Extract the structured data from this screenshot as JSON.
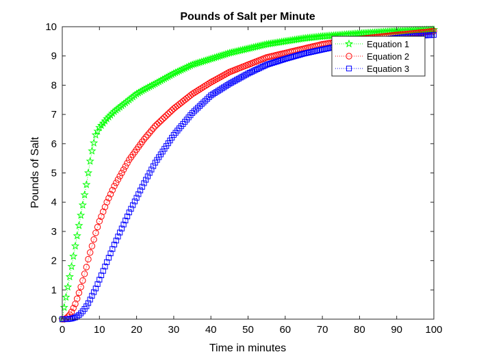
{
  "chart_data": {
    "type": "line",
    "title": "Pounds of Salt per Minute",
    "xlabel": "Time in minutes",
    "ylabel": "Pounds of Salt",
    "xlim": [
      0,
      100
    ],
    "ylim": [
      0,
      10
    ],
    "xticks": [
      0,
      10,
      20,
      30,
      40,
      50,
      60,
      70,
      80,
      90,
      100
    ],
    "yticks": [
      0,
      1,
      2,
      3,
      4,
      5,
      6,
      7,
      8,
      9,
      10
    ],
    "grid": false,
    "legend_position": "top-right",
    "x": [
      0,
      0.5,
      1,
      1.5,
      2,
      2.5,
      3,
      3.5,
      4,
      4.5,
      5,
      5.5,
      6,
      6.5,
      7,
      7.5,
      8,
      9,
      10,
      12,
      14,
      16,
      18,
      20,
      22,
      25,
      30,
      35,
      40,
      45,
      50,
      55,
      60,
      65,
      70,
      75,
      80,
      85,
      90,
      95,
      100
    ],
    "series": [
      {
        "name": "Equation 1",
        "color": "#00ff00",
        "marker": "star",
        "values": [
          0,
          0.4,
          0.75,
          1.1,
          1.45,
          1.8,
          2.15,
          2.5,
          2.85,
          3.2,
          3.55,
          3.9,
          4.25,
          4.6,
          5.0,
          5.4,
          5.75,
          6.3,
          6.55,
          6.85,
          7.1,
          7.3,
          7.5,
          7.7,
          7.85,
          8.05,
          8.4,
          8.7,
          8.9,
          9.1,
          9.25,
          9.4,
          9.5,
          9.6,
          9.67,
          9.72,
          9.77,
          9.81,
          9.85,
          9.88,
          9.9
        ]
      },
      {
        "name": "Equation 2",
        "color": "#ff0000",
        "marker": "circle",
        "values": [
          0,
          0.0,
          0.03,
          0.08,
          0.15,
          0.25,
          0.38,
          0.52,
          0.7,
          0.9,
          1.1,
          1.32,
          1.55,
          1.78,
          2.05,
          2.28,
          2.5,
          2.95,
          3.35,
          4.0,
          4.55,
          5.0,
          5.45,
          5.8,
          6.15,
          6.6,
          7.2,
          7.7,
          8.1,
          8.45,
          8.7,
          8.95,
          9.1,
          9.25,
          9.4,
          9.5,
          9.58,
          9.65,
          9.72,
          9.78,
          9.85
        ]
      },
      {
        "name": "Equation 3",
        "color": "#0000ff",
        "marker": "square",
        "values": [
          0,
          0.0,
          0.0,
          0.0,
          0.01,
          0.02,
          0.04,
          0.06,
          0.1,
          0.14,
          0.2,
          0.27,
          0.35,
          0.44,
          0.55,
          0.67,
          0.8,
          1.05,
          1.35,
          1.95,
          2.55,
          3.1,
          3.65,
          4.15,
          4.65,
          5.35,
          6.3,
          7.05,
          7.65,
          8.05,
          8.4,
          8.7,
          8.9,
          9.08,
          9.22,
          9.35,
          9.45,
          9.55,
          9.62,
          9.68,
          9.72
        ]
      }
    ]
  }
}
